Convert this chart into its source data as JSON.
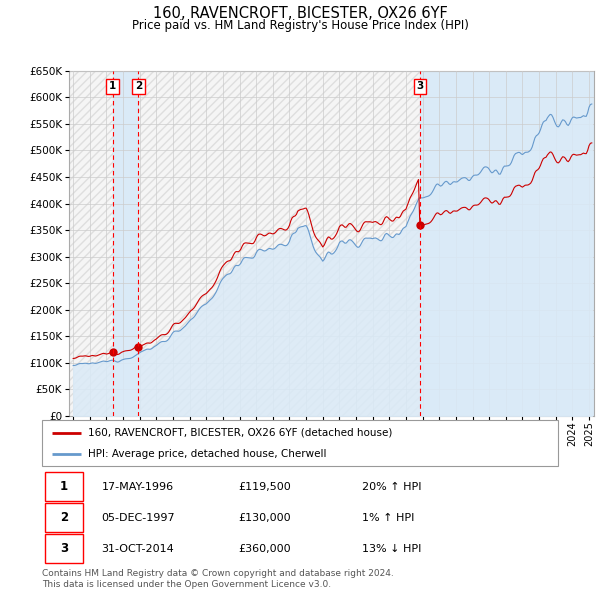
{
  "title": "160, RAVENCROFT, BICESTER, OX26 6YF",
  "subtitle": "Price paid vs. HM Land Registry's House Price Index (HPI)",
  "ylim": [
    0,
    650000
  ],
  "yticks": [
    0,
    50000,
    100000,
    150000,
    200000,
    250000,
    300000,
    350000,
    400000,
    450000,
    500000,
    550000,
    600000,
    650000
  ],
  "xlim_start": 1993.75,
  "xlim_end": 2025.3,
  "sale_dates": [
    1996.37,
    1997.92,
    2014.83
  ],
  "sale_prices": [
    119500,
    130000,
    360000
  ],
  "sale_labels": [
    "1",
    "2",
    "3"
  ],
  "hpi_color": "#6699cc",
  "price_color": "#cc0000",
  "legend_price_label": "160, RAVENCROFT, BICESTER, OX26 6YF (detached house)",
  "legend_hpi_label": "HPI: Average price, detached house, Cherwell",
  "table_rows": [
    [
      "1",
      "17-MAY-1996",
      "£119,500",
      "20% ↑ HPI"
    ],
    [
      "2",
      "05-DEC-1997",
      "£130,000",
      "1% ↑ HPI"
    ],
    [
      "3",
      "31-OCT-2014",
      "£360,000",
      "13% ↓ HPI"
    ]
  ],
  "footnote": "Contains HM Land Registry data © Crown copyright and database right 2024.\nThis data is licensed under the Open Government Licence v3.0.",
  "grid_color": "#cccccc",
  "hpi_fill_color": "#daeaf7",
  "shade_between_sales_color": "#daeaf7"
}
